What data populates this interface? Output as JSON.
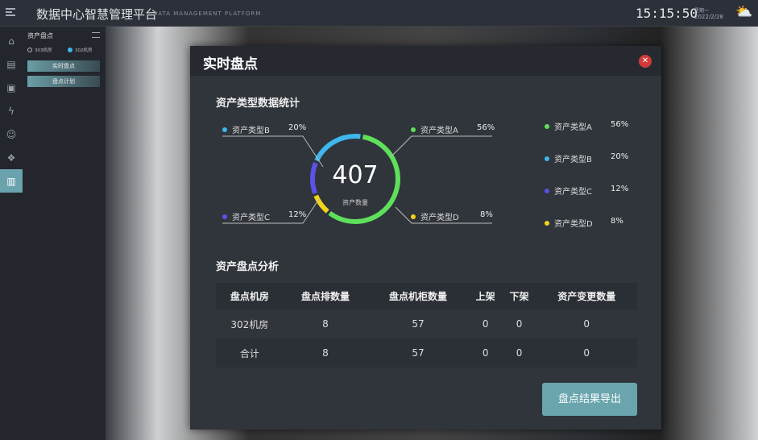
{
  "header": {
    "title": "数据中心智慧管理平台",
    "subtitle": "DATA MANAGEMENT PLATFORM",
    "time": "15:15:50",
    "weekday": "星期一",
    "date": "2022/2/28",
    "weather_icon": "partly-cloudy-icon"
  },
  "iconbar": {
    "icons": [
      "home-icon",
      "server-icon",
      "monitor-icon",
      "power-icon",
      "robot-icon",
      "assets-icon",
      "inventory-icon"
    ],
    "active": 6
  },
  "panel": {
    "title": "资产盘点",
    "radios": [
      {
        "label": "303机房",
        "selected": false
      },
      {
        "label": "302机房",
        "selected": true
      }
    ],
    "buttons": [
      "实时盘点",
      "盘点计划"
    ]
  },
  "modal": {
    "title": "实时盘点",
    "close_icon": "close-icon",
    "stats_title": "资产类型数据统计",
    "total": "407",
    "total_label": "资产数量",
    "types": [
      {
        "name": "资产类型A",
        "pct": "56%",
        "value": 56,
        "color": "#5ee05a"
      },
      {
        "name": "资产类型B",
        "pct": "20%",
        "value": 20,
        "color": "#3fb6ee"
      },
      {
        "name": "资产类型C",
        "pct": "12%",
        "value": 12,
        "color": "#5a52e8"
      },
      {
        "name": "资产类型D",
        "pct": "8%",
        "value": 8,
        "color": "#f2d21c"
      }
    ],
    "analysis_title": "资产盘点分析",
    "table": {
      "headers": [
        "盘点机房",
        "盘点排数量",
        "盘点机柜数量",
        "上架",
        "下架",
        "资产变更数量"
      ],
      "rows": [
        [
          "302机房",
          "8",
          "57",
          "0",
          "0",
          "0"
        ],
        [
          "合计",
          "8",
          "57",
          "0",
          "0",
          "0"
        ]
      ]
    },
    "export_label": "盘点结果导出"
  }
}
